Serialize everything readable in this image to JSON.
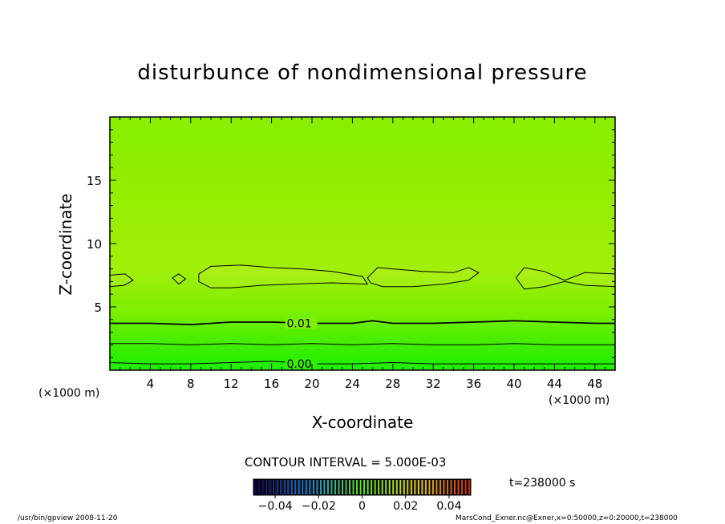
{
  "chart_data": {
    "type": "heatmap",
    "title": "disturbunce of nondimensional pressure",
    "xlabel": "X-coordinate",
    "ylabel": "Z-coordinate",
    "x_unit_label": "(×1000 m)",
    "z_unit_label": "(×1000 m)",
    "xlim": [
      0,
      50
    ],
    "ylim": [
      0,
      20
    ],
    "x_ticks": [
      4,
      8,
      12,
      16,
      20,
      24,
      28,
      32,
      36,
      40,
      44,
      48
    ],
    "y_ticks": [
      5,
      10,
      15
    ],
    "contour_labels": [
      {
        "text": "0.01",
        "x": 17.5,
        "z": 3.7,
        "value": 0.01
      },
      {
        "text": "0.00",
        "x": 17.5,
        "z": 0.5,
        "value": 0.0
      }
    ],
    "contours": [
      {
        "value": 0.01,
        "points": [
          [
            0,
            3.7
          ],
          [
            4,
            3.7
          ],
          [
            8,
            3.6
          ],
          [
            12,
            3.8
          ],
          [
            16,
            3.8
          ],
          [
            20,
            3.7
          ],
          [
            24,
            3.7
          ],
          [
            26,
            3.9
          ],
          [
            28,
            3.7
          ],
          [
            32,
            3.7
          ],
          [
            36,
            3.8
          ],
          [
            40,
            3.9
          ],
          [
            44,
            3.8
          ],
          [
            48,
            3.7
          ],
          [
            50,
            3.7
          ]
        ]
      },
      {
        "value": 0.005,
        "points": [
          [
            0,
            2.1
          ],
          [
            4,
            2.1
          ],
          [
            8,
            2.0
          ],
          [
            12,
            2.1
          ],
          [
            16,
            2.0
          ],
          [
            20,
            2.1
          ],
          [
            24,
            2.0
          ],
          [
            28,
            2.1
          ],
          [
            32,
            2.0
          ],
          [
            36,
            2.0
          ],
          [
            40,
            2.1
          ],
          [
            44,
            2.0
          ],
          [
            48,
            2.0
          ],
          [
            50,
            2.0
          ]
        ]
      },
      {
        "value": 0.0,
        "points": [
          [
            0,
            0.6
          ],
          [
            4,
            0.5
          ],
          [
            8,
            0.5
          ],
          [
            12,
            0.6
          ],
          [
            16,
            0.7
          ],
          [
            20,
            0.5
          ],
          [
            24,
            0.5
          ],
          [
            28,
            0.6
          ],
          [
            32,
            0.5
          ],
          [
            36,
            0.5
          ],
          [
            40,
            0.5
          ],
          [
            44,
            0.5
          ],
          [
            48,
            0.5
          ],
          [
            50,
            0.5
          ]
        ]
      }
    ],
    "closed_contours": [
      {
        "value": 0.015,
        "points": [
          [
            0,
            7.5
          ],
          [
            1.5,
            7.6
          ],
          [
            2.3,
            7.1
          ],
          [
            1.4,
            6.7
          ],
          [
            0,
            6.6
          ]
        ]
      },
      {
        "value": 0.015,
        "points": [
          [
            6.2,
            7.3
          ],
          [
            6.8,
            7.6
          ],
          [
            7.5,
            7.2
          ],
          [
            6.8,
            6.8
          ]
        ]
      },
      {
        "value": 0.015,
        "points": [
          [
            8.8,
            7.6
          ],
          [
            10,
            8.2
          ],
          [
            13,
            8.3
          ],
          [
            16,
            8.1
          ],
          [
            19,
            8.0
          ],
          [
            22,
            7.8
          ],
          [
            25,
            7.4
          ],
          [
            25.5,
            6.8
          ],
          [
            22,
            6.9
          ],
          [
            18,
            6.8
          ],
          [
            15,
            6.7
          ],
          [
            12,
            6.5
          ],
          [
            10,
            6.5
          ],
          [
            8.8,
            7.0
          ]
        ]
      },
      {
        "value": 0.015,
        "points": [
          [
            25.5,
            7.3
          ],
          [
            26.5,
            8.1
          ],
          [
            28,
            8.0
          ],
          [
            31,
            7.8
          ],
          [
            34,
            7.7
          ],
          [
            35.5,
            8.1
          ],
          [
            36.5,
            7.7
          ],
          [
            35.5,
            7.1
          ],
          [
            33,
            6.8
          ],
          [
            30,
            6.6
          ],
          [
            27,
            6.6
          ],
          [
            25.8,
            6.9
          ]
        ]
      },
      {
        "value": 0.015,
        "points": [
          [
            40.2,
            7.3
          ],
          [
            41,
            8.1
          ],
          [
            43,
            7.8
          ],
          [
            45,
            7.1
          ],
          [
            47,
            7.7
          ],
          [
            50,
            7.6
          ],
          [
            50,
            6.6
          ],
          [
            47,
            6.7
          ],
          [
            45,
            7.0
          ],
          [
            43,
            6.6
          ],
          [
            41,
            6.4
          ]
        ]
      }
    ],
    "color_bands": [
      {
        "z_from": 0,
        "z_to": 0.6,
        "color": "#22ee00"
      },
      {
        "z_from": 0.6,
        "z_to": 2.1,
        "color": "#33ee00"
      },
      {
        "z_from": 2.1,
        "z_to": 3.7,
        "color": "#55ee00"
      },
      {
        "z_from": 3.7,
        "z_to": 5.5,
        "color": "#7def00"
      },
      {
        "z_from": 5.5,
        "z_to": 10.5,
        "color": "#a2ef0a"
      },
      {
        "z_from": 10.5,
        "z_to": 15.8,
        "color": "#96ee00"
      },
      {
        "z_from": 15.8,
        "z_to": 20,
        "color": "#8aee00"
      }
    ],
    "contour_interval_text": "CONTOUR INTERVAL = 5.000E-03",
    "colorbar": {
      "min": -0.05,
      "max": 0.05,
      "tick_labels": [
        "−0.04",
        "−0.02",
        "0",
        "0.02",
        "0.04"
      ],
      "tick_values": [
        -0.04,
        -0.02,
        0,
        0.02,
        0.04
      ]
    },
    "time_label": "t=238000 s"
  },
  "footer": {
    "left": "/usr/bin/gpview  2008-11-20",
    "right": "MarsCond_Exner.nc@Exner,x=0:50000,z=0:20000,t=238000"
  }
}
